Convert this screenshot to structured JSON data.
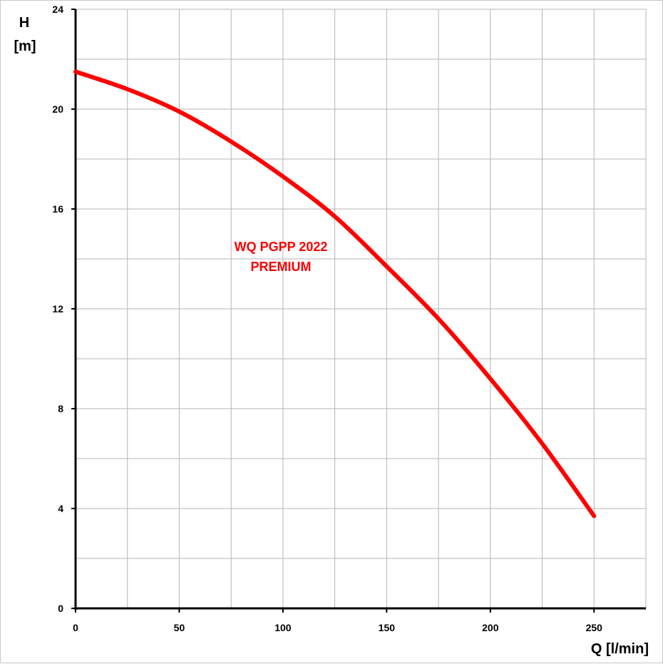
{
  "chart_data": {
    "type": "line",
    "xlabel": "Q [l/min]",
    "ylabel_line1": "H",
    "ylabel_line2": "[m]",
    "xlim": [
      0,
      275
    ],
    "ylim": [
      0,
      24
    ],
    "x_ticks": [
      0,
      50,
      100,
      150,
      200,
      250
    ],
    "y_ticks": [
      0,
      4,
      8,
      12,
      16,
      20,
      24
    ],
    "x_grid_step": 25,
    "y_grid_step": 2,
    "grid": true,
    "annotation_line1": "WQ PGPP 2022",
    "annotation_line2": "PREMIUM",
    "series_color": "#ff0000",
    "series": [
      {
        "x": [
          0,
          25,
          50,
          75,
          100,
          125,
          150,
          175,
          200,
          225,
          250
        ],
        "values": [
          21.5,
          20.8,
          19.9,
          18.7,
          17.3,
          15.7,
          13.7,
          11.6,
          9.2,
          6.6,
          3.7
        ]
      }
    ]
  }
}
